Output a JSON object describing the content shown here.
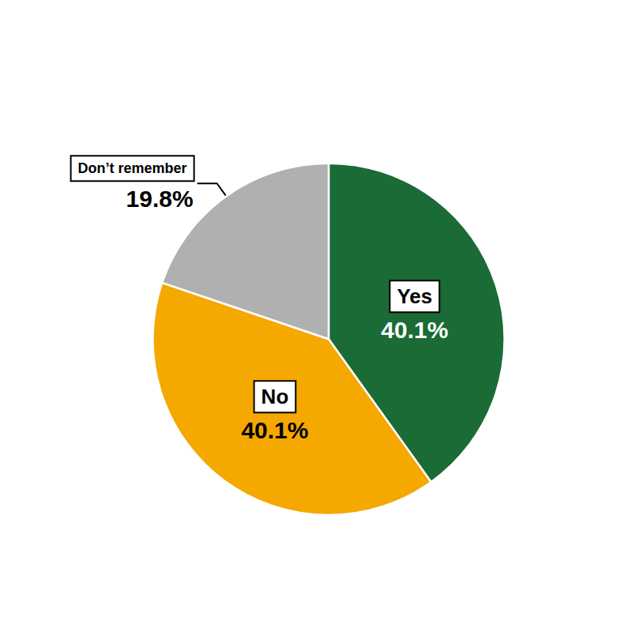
{
  "chart_data": {
    "type": "pie",
    "categories": [
      "Yes",
      "No",
      "Don’t remember"
    ],
    "values": [
      40.1,
      40.1,
      19.8
    ],
    "value_labels": [
      "40.1%",
      "40.1%",
      "19.8%"
    ],
    "colors": [
      "#1a6b35",
      "#f5a800",
      "#b0b0b0"
    ],
    "data_labels": true
  }
}
